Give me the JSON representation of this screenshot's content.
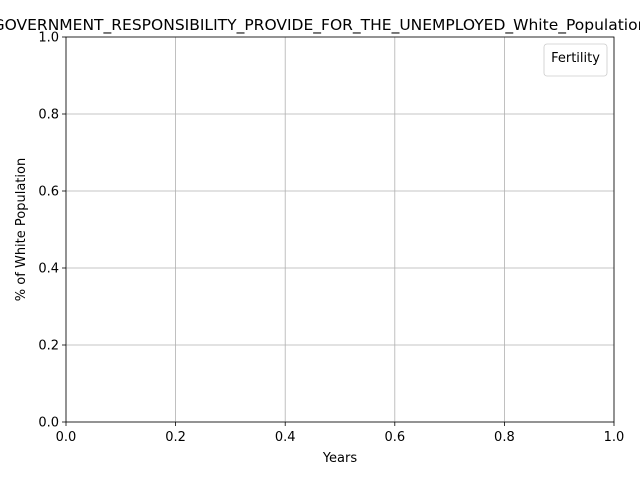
{
  "chart_data": {
    "type": "line",
    "title": "GOVERNMENT_RESPONSIBILITY_PROVIDE_FOR_THE_UNEMPLOYED_White_Population",
    "xlabel": "Years",
    "ylabel": "% of White Population",
    "xlim": [
      0.0,
      1.0
    ],
    "ylim": [
      0.0,
      1.0
    ],
    "xticks": [
      "0.0",
      "0.2",
      "0.4",
      "0.6",
      "0.8",
      "1.0"
    ],
    "yticks": [
      "0.0",
      "0.2",
      "0.4",
      "0.6",
      "0.8",
      "1.0"
    ],
    "grid": true,
    "legend": {
      "title": "Fertility",
      "placement": "top-right",
      "entries": []
    },
    "series": []
  }
}
